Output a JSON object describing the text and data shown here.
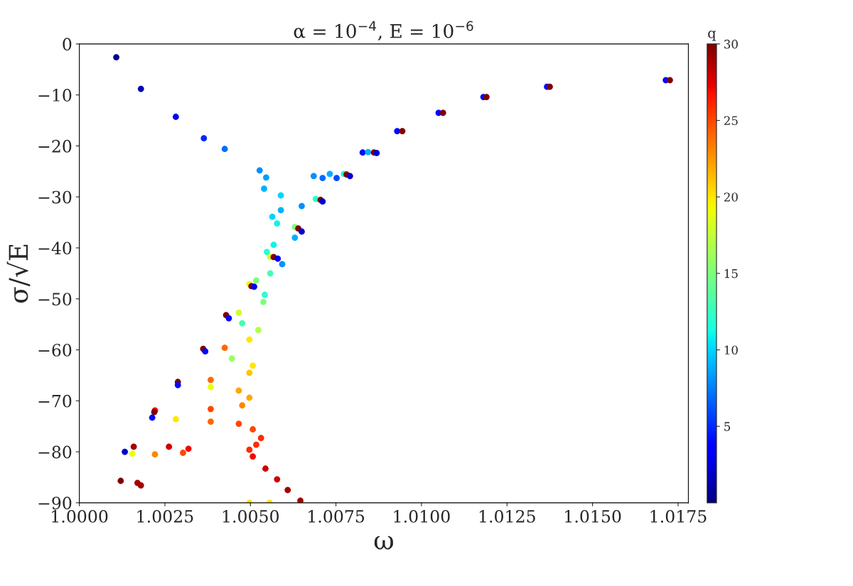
{
  "chart_data": {
    "type": "scatter",
    "title": "α = 10$^{−4}$, E = 10$^{−6}$",
    "xlabel": "ω",
    "ylabel": "σ/√E",
    "clabel": "q",
    "x": [
      1.00108,
      1.0018,
      1.00282,
      1.00364,
      1.00425,
      1.00527,
      1.00546,
      1.0054,
      1.00589,
      1.00691,
      1.00705,
      1.00711,
      1.0065,
      1.00589,
      1.00564,
      1.00578,
      1.0063,
      1.0064,
      1.0065,
      1.0063,
      1.00568,
      1.00548,
      1.00558,
      1.00568,
      1.0058,
      1.00593,
      1.00558,
      1.00517,
      1.00497,
      1.00503,
      1.00511,
      1.00542,
      1.00538,
      1.00466,
      1.00429,
      1.00437,
      1.00476,
      1.00523,
      1.00497,
      1.00425,
      1.00362,
      1.00368,
      1.00446,
      1.00507,
      1.00497,
      1.00384,
      1.00288,
      1.00288,
      1.00384,
      1.00466,
      1.00497,
      1.00476,
      1.00384,
      1.00221,
      1.00219,
      1.00213,
      1.00282,
      1.00384,
      1.00466,
      1.00507,
      1.00531,
      1.00517,
      1.00497,
      1.00507,
      1.00544,
      1.00578,
      1.00609,
      1.00646,
      1.00497,
      1.00556,
      1.00133,
      1.00155,
      1.00221,
      1.00303,
      1.00319,
      1.00262,
      1.00159,
      1.00121,
      1.0017,
      1.0018,
      1.00685,
      1.00732,
      1.00773,
      1.00781,
      1.00791,
      1.00752,
      1.00711,
      1.00828,
      1.00844,
      1.00861,
      1.00869,
      1.00929,
      1.00944,
      1.0105,
      1.01063,
      1.01181,
      1.0119,
      1.01367,
      1.01375,
      1.01714,
      1.01726
    ],
    "values": [
      -2.6,
      -8.8,
      -14.3,
      -18.5,
      -20.6,
      -24.8,
      -26.2,
      -28.4,
      -29.7,
      -30.4,
      -30.6,
      -30.9,
      -31.8,
      -32.6,
      -33.9,
      -35.2,
      -35.9,
      -36.2,
      -36.8,
      -38.0,
      -39.4,
      -40.8,
      -41.8,
      -41.8,
      -42.1,
      -43.2,
      -45.0,
      -46.4,
      -47.1,
      -47.5,
      -47.6,
      -49.2,
      -50.6,
      -52.7,
      -53.2,
      -53.8,
      -54.8,
      -56.1,
      -58.0,
      -59.6,
      -59.8,
      -60.3,
      -61.7,
      -63.1,
      -64.5,
      -65.9,
      -66.3,
      -66.9,
      -67.3,
      -68.0,
      -69.4,
      -70.9,
      -71.6,
      -71.9,
      -72.2,
      -73.3,
      -73.6,
      -74.1,
      -74.5,
      -75.6,
      -77.3,
      -78.6,
      -79.6,
      -80.9,
      -83.3,
      -85.4,
      -87.5,
      -89.6,
      -90,
      -90,
      -80.0,
      -80.4,
      -80.5,
      -80.2,
      -79.4,
      -79.0,
      -79.0,
      -85.7,
      -86.1,
      -86.6,
      -25.9,
      -25.5,
      -25.5,
      -25.6,
      -25.9,
      -26.3,
      -26.3,
      -21.3,
      -21.2,
      -21.3,
      -21.4,
      -17.1,
      -17.1,
      -13.5,
      -13.5,
      -10.4,
      -10.4,
      -8.4,
      -8.4,
      -7.1,
      -7.1
    ],
    "cvalues": [
      0.5,
      1.5,
      3,
      5,
      7,
      8,
      8.5,
      9,
      10,
      12,
      30,
      2,
      8,
      9,
      10,
      11,
      15,
      30,
      2,
      9,
      11,
      12,
      18,
      30,
      3,
      8,
      13,
      15,
      19,
      30,
      3,
      12,
      15,
      18,
      30,
      4,
      13,
      17,
      20,
      24,
      30,
      4,
      16,
      20,
      21,
      24,
      30,
      4,
      19,
      22,
      22,
      23,
      25,
      27,
      30,
      4,
      20,
      24,
      25,
      25,
      26,
      26,
      26,
      27,
      28,
      28,
      29,
      29,
      20,
      20,
      2,
      19,
      23,
      25,
      27,
      28,
      29,
      30,
      29,
      29,
      8,
      9,
      12,
      30,
      2,
      6,
      7,
      4,
      9,
      30,
      2,
      4,
      30,
      4,
      30,
      4,
      30,
      4,
      30,
      4,
      30
    ],
    "xlim": [
      1.0,
      1.0178
    ],
    "xticks": [
      {
        "value": 1.0,
        "label": "1.0000"
      },
      {
        "value": 1.0025,
        "label": "1.0025"
      },
      {
        "value": 1.005,
        "label": "1.0050"
      },
      {
        "value": 1.0075,
        "label": "1.0075"
      },
      {
        "value": 1.01,
        "label": "1.0100"
      },
      {
        "value": 1.0125,
        "label": "1.0125"
      },
      {
        "value": 1.015,
        "label": "1.0150"
      },
      {
        "value": 1.0175,
        "label": "1.0175"
      }
    ],
    "ylim": [
      -90,
      0
    ],
    "yticks": [
      -90,
      -80,
      -70,
      -60,
      -50,
      -40,
      -30,
      -20,
      -10,
      0
    ],
    "clim": [
      0,
      30
    ],
    "cticks": [
      5,
      10,
      15,
      20,
      25,
      30
    ],
    "grid": false,
    "legend": false,
    "marker": "circle"
  }
}
